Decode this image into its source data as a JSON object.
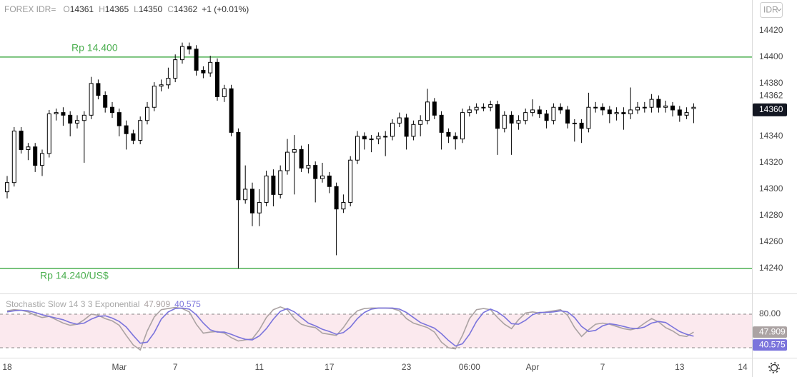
{
  "chart_data": [
    {
      "type": "candlestick",
      "title": "FOREX IDR=",
      "currency": "IDR",
      "ohlc_labels": [
        "O",
        "H",
        "L",
        "C"
      ],
      "change": "+1 (+0.01%)",
      "categories": [
        "18",
        null,
        null,
        null,
        null,
        null,
        null,
        null,
        null,
        null,
        null,
        null,
        null,
        null,
        null,
        null,
        "Mar",
        null,
        null,
        null,
        null,
        null,
        null,
        null,
        "7",
        null,
        null,
        null,
        null,
        null,
        null,
        null,
        null,
        null,
        null,
        null,
        "11",
        null,
        null,
        null,
        null,
        null,
        null,
        null,
        null,
        null,
        "17",
        null,
        null,
        null,
        null,
        null,
        null,
        null,
        null,
        null,
        null,
        "23",
        null,
        null,
        null,
        null,
        null,
        null,
        null,
        null,
        "06:00",
        null,
        null,
        null,
        null,
        null,
        null,
        null,
        null,
        "Apr",
        null,
        null,
        null,
        null,
        null,
        null,
        null,
        null,
        null,
        "7",
        null,
        null,
        null,
        null,
        null,
        null,
        null,
        null,
        null,
        null,
        "13",
        null,
        null,
        null,
        null,
        null,
        null,
        null,
        null,
        "14"
      ],
      "open": [
        14298,
        14305,
        14344,
        14330,
        14332,
        14318,
        14327,
        14357,
        14358,
        14356,
        14350,
        14352,
        14356,
        14380,
        14371,
        14362,
        14358,
        14348,
        14342,
        14337,
        14352,
        14362,
        14378,
        14379,
        14384,
        14398,
        14408,
        14406,
        14390,
        14388,
        14396,
        14370,
        14376,
        14343,
        14292,
        14300,
        14282,
        14290,
        14310,
        14296,
        14314,
        14328,
        14330,
        14316,
        14318,
        14308,
        14310,
        14302,
        14285,
        14290,
        14322,
        14340,
        14338,
        14338,
        14340,
        14340,
        14350,
        14354,
        14340,
        14349,
        14352,
        14366,
        14356,
        14343,
        14340,
        14338,
        14358,
        14360,
        14362,
        14362,
        14364,
        14346,
        14356,
        14350,
        14352,
        14358,
        14360,
        14357,
        14352,
        14362,
        14360,
        14350,
        14350,
        14346,
        14362,
        14362,
        14360,
        14357,
        14358,
        14357,
        14360,
        14362,
        14362,
        14368,
        14362,
        14363,
        14360,
        14356,
        14361,
        null,
        null,
        null,
        null,
        null,
        null,
        null
      ],
      "high": [
        14310,
        14347,
        14347,
        14335,
        14335,
        14330,
        14360,
        14361,
        14362,
        14359,
        14356,
        14359,
        14385,
        14383,
        14374,
        14366,
        14361,
        14352,
        14345,
        14355,
        14366,
        14381,
        14383,
        14392,
        14402,
        14411,
        14411,
        14409,
        14393,
        14401,
        14399,
        14379,
        14379,
        14346,
        14318,
        14305,
        14300,
        14314,
        14315,
        14318,
        14338,
        14341,
        14333,
        14334,
        14321,
        14320,
        14313,
        14305,
        14296,
        14325,
        14344,
        14343,
        14341,
        14343,
        14344,
        14353,
        14358,
        14357,
        14352,
        14356,
        14376,
        14369,
        14359,
        14346,
        14343,
        14361,
        14363,
        14365,
        14365,
        14367,
        14367,
        14359,
        14359,
        14356,
        14361,
        14368,
        14363,
        14360,
        14365,
        14365,
        14363,
        14353,
        14353,
        14373,
        14366,
        14365,
        14363,
        14362,
        14362,
        14377,
        14366,
        14366,
        14372,
        14371,
        14367,
        14366,
        14363,
        14362,
        14365,
        null,
        null,
        null,
        null,
        null,
        null,
        null
      ],
      "low": [
        14293,
        14302,
        14327,
        14322,
        14313,
        14310,
        14324,
        14352,
        14348,
        14340,
        14346,
        14320,
        14353,
        14368,
        14358,
        14354,
        14340,
        14330,
        14334,
        14334,
        14349,
        14359,
        14374,
        14376,
        14381,
        14395,
        14402,
        14386,
        14384,
        14385,
        14367,
        14366,
        14340,
        14240,
        14289,
        14272,
        14272,
        14287,
        14287,
        14293,
        14311,
        14296,
        14313,
        14312,
        14290,
        14305,
        14297,
        14250,
        14282,
        14287,
        14319,
        14330,
        14328,
        14334,
        14325,
        14337,
        14347,
        14330,
        14337,
        14340,
        14349,
        14353,
        14330,
        14335,
        14330,
        14335,
        14355,
        14357,
        14359,
        14359,
        14326,
        14343,
        14326,
        14345,
        14349,
        14355,
        14354,
        14346,
        14349,
        14357,
        14346,
        14336,
        14335,
        14343,
        14358,
        14356,
        14350,
        14352,
        14345,
        14353,
        14357,
        14358,
        14358,
        14358,
        14358,
        14355,
        14351,
        14353,
        14350,
        null,
        null,
        null,
        null,
        null,
        null,
        null
      ],
      "close": [
        14305,
        14344,
        14330,
        14332,
        14318,
        14327,
        14357,
        14358,
        14356,
        14350,
        14352,
        14356,
        14380,
        14371,
        14362,
        14358,
        14348,
        14342,
        14337,
        14352,
        14362,
        14378,
        14379,
        14384,
        14398,
        14408,
        14406,
        14390,
        14388,
        14396,
        14370,
        14376,
        14343,
        14292,
        14300,
        14282,
        14290,
        14310,
        14296,
        14314,
        14328,
        14330,
        14316,
        14318,
        14308,
        14310,
        14302,
        14285,
        14290,
        14322,
        14340,
        14338,
        14338,
        14340,
        14340,
        14350,
        14354,
        14340,
        14349,
        14352,
        14366,
        14356,
        14343,
        14340,
        14338,
        14358,
        14360,
        14362,
        14362,
        14364,
        14346,
        14356,
        14350,
        14352,
        14358,
        14360,
        14357,
        14352,
        14362,
        14360,
        14350,
        14350,
        14346,
        14362,
        14362,
        14360,
        14357,
        14358,
        14357,
        14360,
        14362,
        14362,
        14368,
        14362,
        14363,
        14360,
        14356,
        14358,
        14362,
        null,
        null,
        null,
        null,
        null,
        null,
        null
      ],
      "color": "#000000",
      "up_fill": "#ffffff",
      "ylim": [
        14221.6,
        14443.2
      ],
      "yticks": [
        14240,
        14260,
        14280,
        14300,
        14320,
        14340,
        14380,
        14400,
        14420
      ],
      "price_marker": 14360,
      "hlines": [
        {
          "value": 14400,
          "label": "Rp 14.400"
        },
        {
          "value": 14240,
          "label": "Rp 14.240/US$"
        }
      ],
      "hline_color": "#4caf50",
      "grid": false
    },
    {
      "type": "line",
      "title": "Stochastic Slow 14 3 3 Exponential",
      "series": [
        {
          "color": "#aba3a3",
          "values": [
            86,
            88,
            87,
            84,
            78,
            74,
            76,
            70,
            64,
            60,
            62,
            70,
            80,
            78,
            72,
            68,
            60,
            42,
            25,
            16,
            50,
            75,
            88,
            90,
            92,
            90,
            84,
            62,
            46,
            48,
            49,
            46,
            38,
            32,
            34,
            36,
            52,
            74,
            88,
            93,
            88,
            72,
            62,
            58,
            56,
            46,
            44,
            42,
            56,
            74,
            86,
            90,
            91,
            91,
            91,
            90,
            86,
            72,
            64,
            60,
            56,
            48,
            30,
            20,
            18,
            42,
            72,
            88,
            90,
            88,
            74,
            62,
            54,
            70,
            82,
            84,
            82,
            84,
            86,
            88,
            78,
            56,
            40,
            52,
            62,
            64,
            62,
            58,
            54,
            52,
            55,
            64,
            72,
            66,
            56,
            50,
            42,
            40,
            47.909,
            null,
            null,
            null,
            null,
            null,
            null,
            null
          ]
        },
        {
          "color": "#7b74dc",
          "values": [
            84,
            86,
            87,
            86,
            83,
            79,
            76,
            73,
            70,
            65,
            62,
            64,
            71,
            76,
            77,
            73,
            67,
            57,
            42,
            28,
            30,
            47,
            71,
            84,
            90,
            91,
            89,
            79,
            64,
            52,
            48,
            48,
            44,
            39,
            35,
            34,
            41,
            54,
            71,
            85,
            90,
            84,
            74,
            64,
            59,
            53,
            49,
            44,
            47,
            57,
            72,
            83,
            89,
            91,
            91,
            91,
            89,
            83,
            74,
            65,
            60,
            55,
            45,
            33,
            23,
            27,
            44,
            67,
            83,
            89,
            84,
            75,
            63,
            62,
            69,
            79,
            83,
            83,
            84,
            86,
            84,
            74,
            58,
            49,
            51,
            59,
            63,
            61,
            58,
            55,
            54,
            57,
            64,
            67,
            65,
            57,
            49,
            44,
            40.575,
            null,
            null,
            null,
            null,
            null,
            null,
            null
          ]
        }
      ],
      "ylim": [
        3.4,
        115.7
      ],
      "yticks": [
        {
          "value": 80,
          "label": "80.00"
        }
      ],
      "band": [
        20,
        80
      ],
      "band_color": "#fbe9ee"
    }
  ]
}
